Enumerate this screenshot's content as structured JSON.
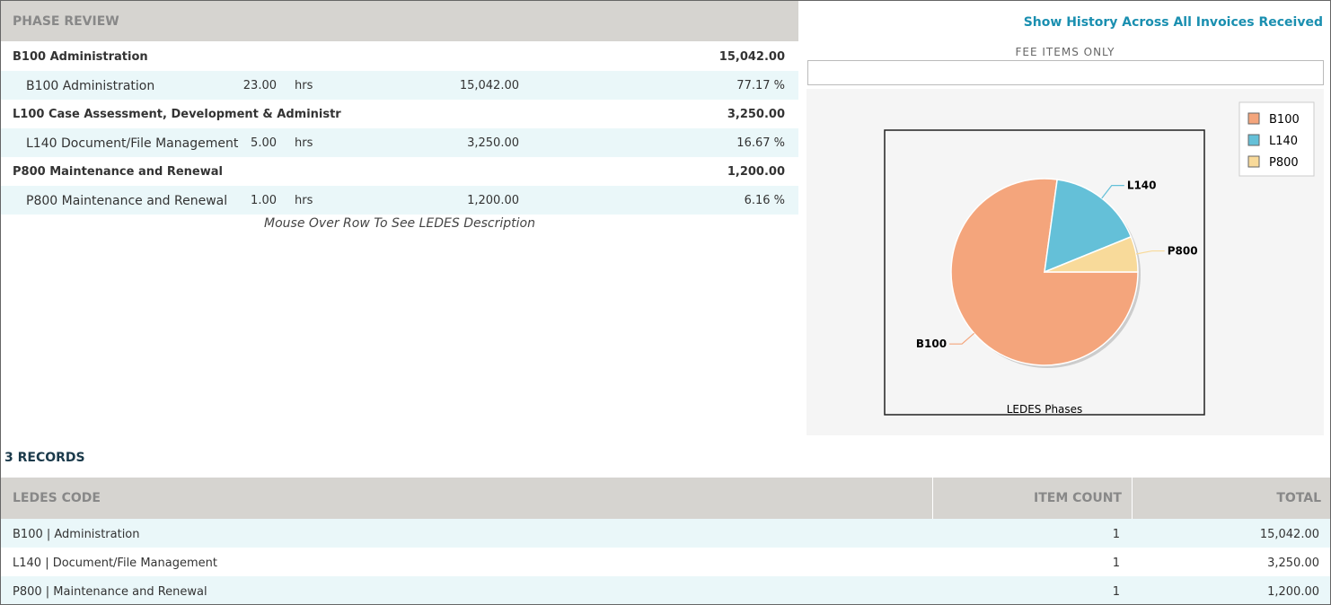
{
  "phase_review": {
    "title": "PHASE REVIEW",
    "phases": [
      {
        "name": "B100 Administration",
        "total": "15,042.00",
        "items": [
          {
            "name": "B100 Administration",
            "hours": "23.00",
            "unit": "hrs",
            "amount": "15,042.00",
            "percent": "77.17 %"
          }
        ]
      },
      {
        "name": "L100 Case Assessment, Development & Administr",
        "total": "3,250.00",
        "items": [
          {
            "name": "L140 Document/File Management",
            "hours": "5.00",
            "unit": "hrs",
            "amount": "3,250.00",
            "percent": "16.67 %"
          }
        ]
      },
      {
        "name": "P800 Maintenance and Renewal",
        "total": "1,200.00",
        "items": [
          {
            "name": "P800 Maintenance and Renewal",
            "hours": "1.00",
            "unit": "hrs",
            "amount": "1,200.00",
            "percent": "6.16 %"
          }
        ]
      }
    ],
    "note": "Mouse Over Row To See LEDES Description"
  },
  "history_link": "Show History Across All Invoices Received",
  "chart_data": {
    "type": "pie",
    "subtitle": "FEE ITEMS ONLY",
    "title": "LEDES Phases",
    "categories": [
      "B100",
      "L140",
      "P800"
    ],
    "values": [
      15042,
      3250,
      1200
    ],
    "colors": [
      "#f4a57c",
      "#64c0d8",
      "#f8da9a"
    ],
    "legend": "top-right"
  },
  "records": {
    "title": "3 RECORDS",
    "columns": [
      "LEDES CODE",
      "ITEM COUNT",
      "TOTAL"
    ],
    "rows": [
      [
        "B100 | Administration",
        "1",
        "15,042.00"
      ],
      [
        "L140 | Document/File Management",
        "1",
        "3,250.00"
      ],
      [
        "P800 | Maintenance and Renewal",
        "1",
        "1,200.00"
      ]
    ]
  }
}
